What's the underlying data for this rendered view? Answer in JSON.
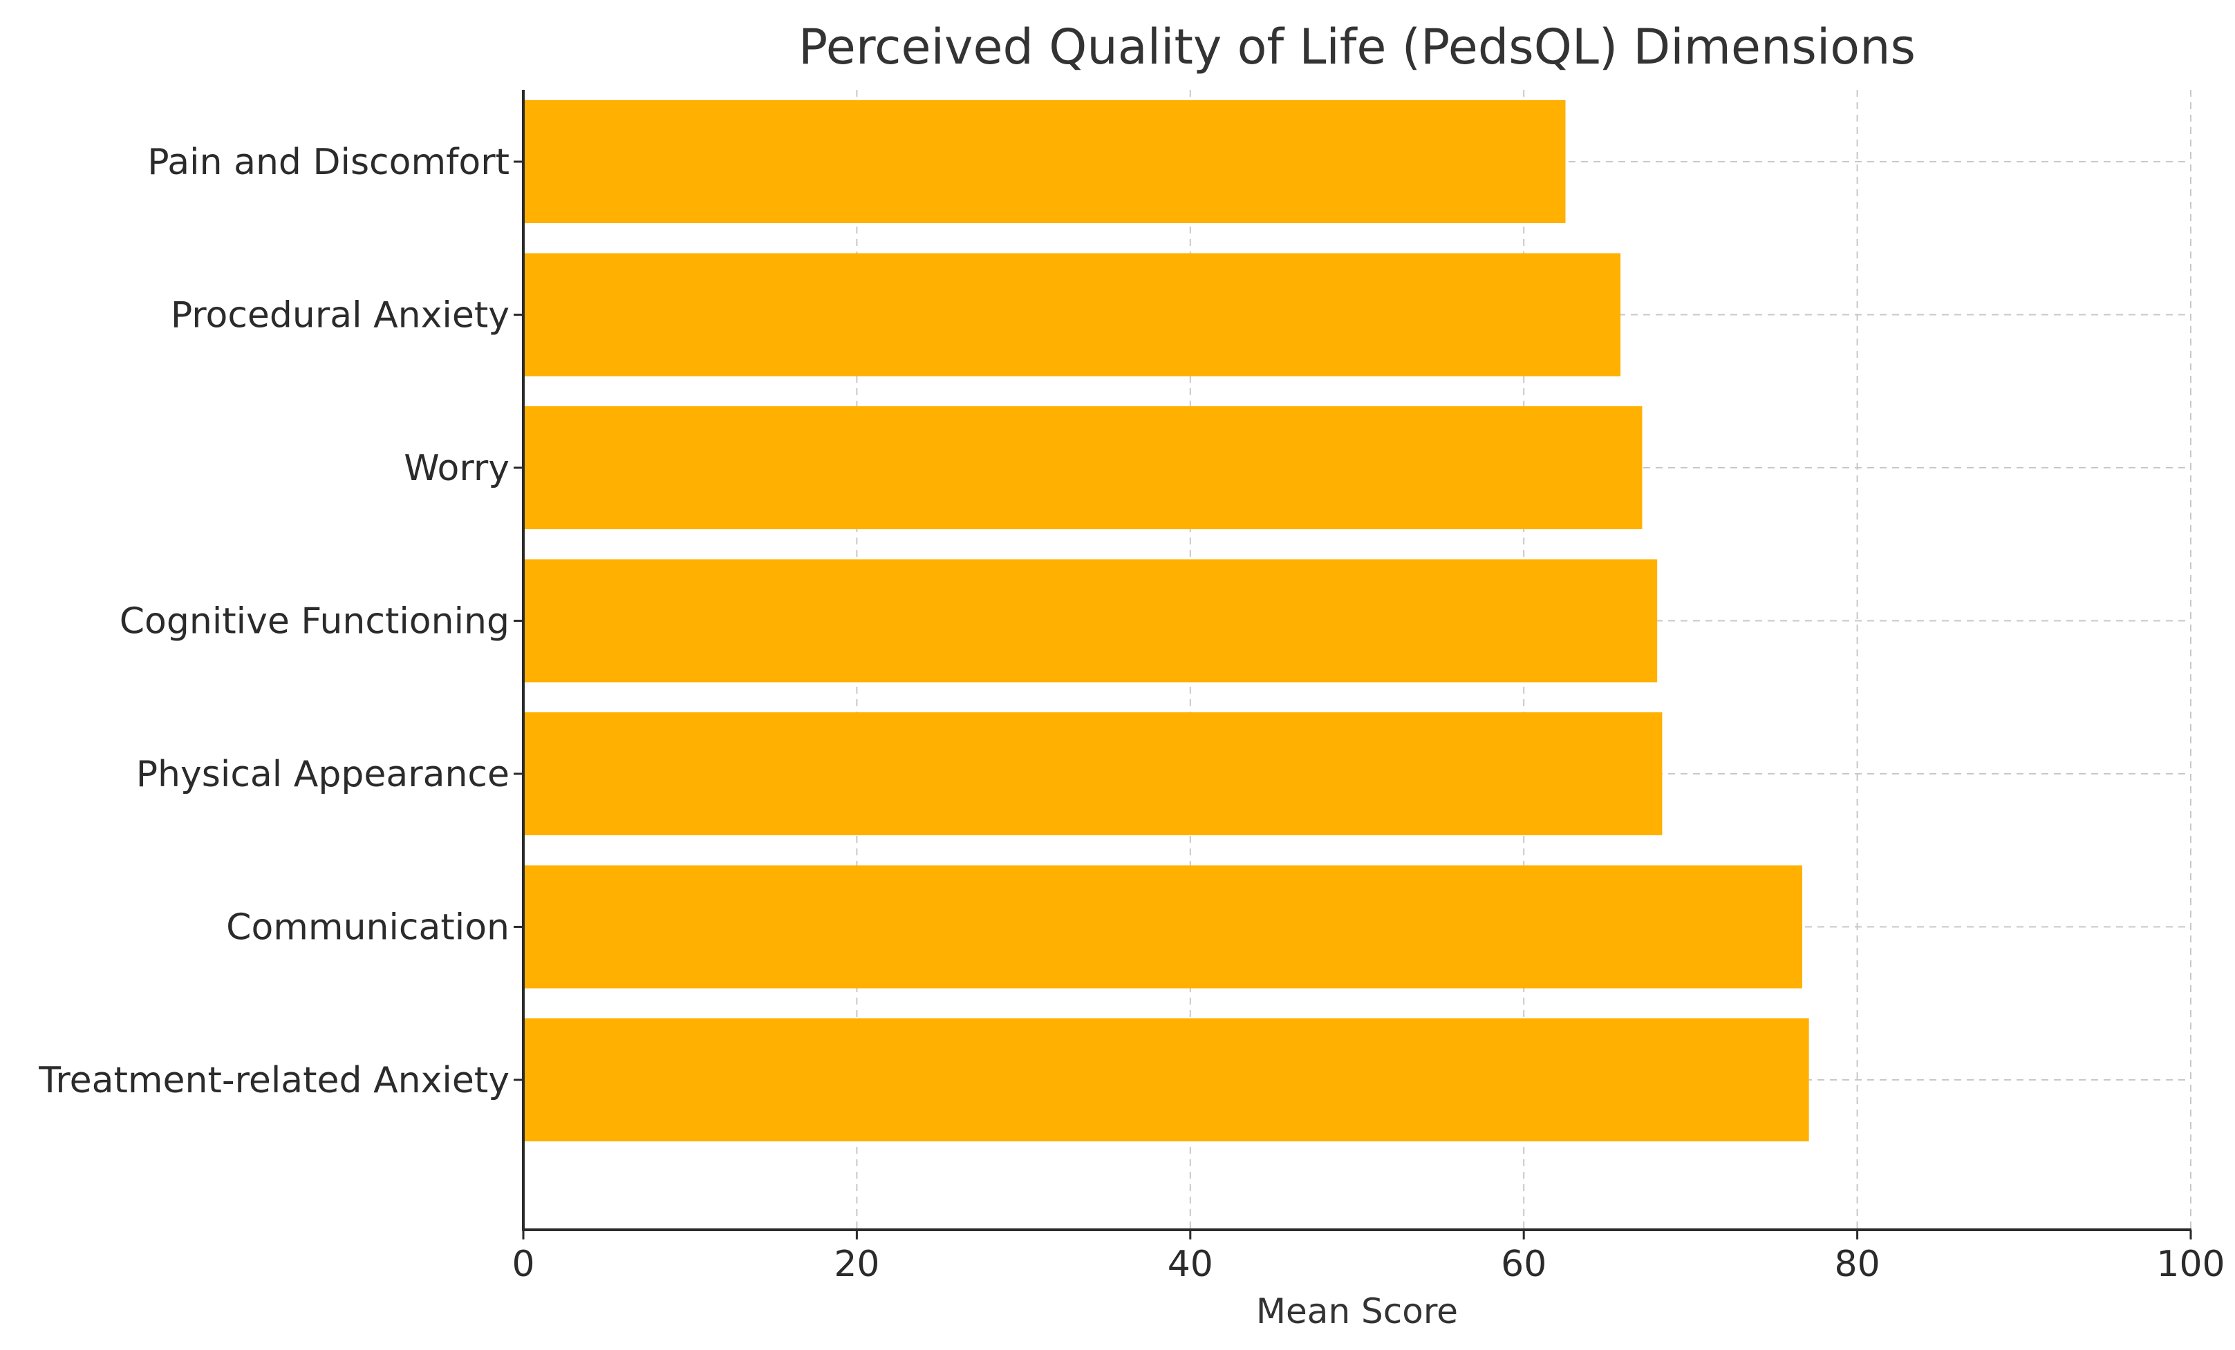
{
  "chart_data": {
    "type": "bar",
    "orientation": "horizontal",
    "title": "Perceived Quality of Life (PedsQL) Dimensions",
    "xlabel": "Mean Score",
    "ylabel": "",
    "xlim": [
      0,
      100
    ],
    "xticks": [
      0,
      20,
      40,
      60,
      80,
      100
    ],
    "xtick_labels": [
      "0",
      "20",
      "40",
      "60",
      "80",
      "100"
    ],
    "grid": true,
    "categories": [
      "Pain and Discomfort",
      "Procedural Anxiety",
      "Worry",
      "Cognitive Functioning",
      "Physical Appearance",
      "Communication",
      "Treatment-related Anxiety"
    ],
    "values": [
      62.5,
      65.8,
      67.1,
      68.0,
      68.3,
      76.7,
      77.1
    ],
    "bar_color": "#FFB000"
  }
}
